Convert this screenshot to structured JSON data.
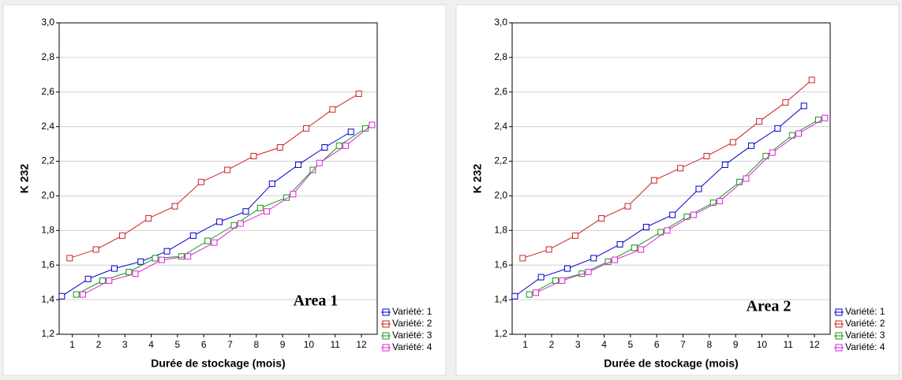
{
  "chart_data": [
    {
      "type": "line",
      "ylabel": "K 232",
      "xlabel": "Durée de stockage (mois)",
      "annotation": "Area 1",
      "xlim": [
        0.5,
        12.6
      ],
      "xticks": [
        1,
        2,
        3,
        4,
        5,
        6,
        7,
        8,
        9,
        10,
        11,
        12
      ],
      "ylim": [
        1.2,
        3.0
      ],
      "yticks": [
        {
          "value": 1.2,
          "label": "1,2"
        },
        {
          "value": 1.4,
          "label": "1,4"
        },
        {
          "value": 1.6,
          "label": "1,6"
        },
        {
          "value": 1.8,
          "label": "1,8"
        },
        {
          "value": 2.0,
          "label": "2,0"
        },
        {
          "value": 2.2,
          "label": "2,2"
        },
        {
          "value": 2.4,
          "label": "2,4"
        },
        {
          "value": 2.6,
          "label": "2,6"
        },
        {
          "value": 2.8,
          "label": "2,8"
        },
        {
          "value": 3.0,
          "label": "3,0"
        }
      ],
      "grid": true,
      "legend": "lower right",
      "series": [
        {
          "name": "Variété: 1",
          "color": "#0000cc",
          "x": [
            0.6,
            1.6,
            2.6,
            3.6,
            4.6,
            5.6,
            6.6,
            7.6,
            8.6,
            9.6,
            10.6,
            11.6
          ],
          "values": [
            1.42,
            1.52,
            1.58,
            1.62,
            1.68,
            1.77,
            1.85,
            1.91,
            2.07,
            2.18,
            2.28,
            2.37
          ]
        },
        {
          "name": "Variété: 2",
          "color": "#cc2222",
          "x": [
            0.9,
            1.9,
            2.9,
            3.9,
            4.9,
            5.9,
            6.9,
            7.9,
            8.9,
            9.9,
            10.9,
            11.9
          ],
          "values": [
            1.64,
            1.69,
            1.77,
            1.87,
            1.94,
            2.08,
            2.15,
            2.23,
            2.28,
            2.39,
            2.5,
            2.59
          ]
        },
        {
          "name": "Variété: 3",
          "color": "#119911",
          "x": [
            1.15,
            2.15,
            3.15,
            4.15,
            5.15,
            6.15,
            7.15,
            8.15,
            9.15,
            10.15,
            11.15,
            12.15
          ],
          "values": [
            1.43,
            1.51,
            1.56,
            1.64,
            1.65,
            1.74,
            1.83,
            1.93,
            1.99,
            2.15,
            2.29,
            2.39
          ]
        },
        {
          "name": "Variété: 4",
          "color": "#dd22dd",
          "x": [
            1.4,
            2.4,
            3.4,
            4.4,
            5.4,
            6.4,
            7.4,
            8.4,
            9.4,
            10.4,
            11.4,
            12.4
          ],
          "values": [
            1.43,
            1.51,
            1.55,
            1.63,
            1.65,
            1.73,
            1.84,
            1.91,
            2.01,
            2.19,
            2.29,
            2.41
          ]
        }
      ]
    },
    {
      "type": "line",
      "ylabel": "K 232",
      "xlabel": "Durée de stockage (mois)",
      "annotation": "Area 2",
      "xlim": [
        0.5,
        12.6
      ],
      "xticks": [
        1,
        2,
        3,
        4,
        5,
        6,
        7,
        8,
        9,
        10,
        11,
        12
      ],
      "ylim": [
        1.2,
        3.0
      ],
      "yticks": [
        {
          "value": 1.2,
          "label": "1,2"
        },
        {
          "value": 1.4,
          "label": "1,4"
        },
        {
          "value": 1.6,
          "label": "1,6"
        },
        {
          "value": 1.8,
          "label": "1,8"
        },
        {
          "value": 2.0,
          "label": "2,0"
        },
        {
          "value": 2.2,
          "label": "2,2"
        },
        {
          "value": 2.4,
          "label": "2,4"
        },
        {
          "value": 2.6,
          "label": "2,6"
        },
        {
          "value": 2.8,
          "label": "2,8"
        },
        {
          "value": 3.0,
          "label": "3,0"
        }
      ],
      "grid": true,
      "legend": "lower right",
      "series": [
        {
          "name": "Variété: 1",
          "color": "#0000cc",
          "x": [
            0.6,
            1.6,
            2.6,
            3.6,
            4.6,
            5.6,
            6.6,
            7.6,
            8.6,
            9.6,
            10.6,
            11.6
          ],
          "values": [
            1.42,
            1.53,
            1.58,
            1.64,
            1.72,
            1.82,
            1.89,
            2.04,
            2.18,
            2.29,
            2.39,
            2.52
          ]
        },
        {
          "name": "Variété: 2",
          "color": "#cc2222",
          "x": [
            0.9,
            1.9,
            2.9,
            3.9,
            4.9,
            5.9,
            6.9,
            7.9,
            8.9,
            9.9,
            10.9,
            11.9
          ],
          "values": [
            1.64,
            1.69,
            1.77,
            1.87,
            1.94,
            2.09,
            2.16,
            2.23,
            2.31,
            2.43,
            2.54,
            2.67
          ]
        },
        {
          "name": "Variété: 3",
          "color": "#119911",
          "x": [
            1.15,
            2.15,
            3.15,
            4.15,
            5.15,
            6.15,
            7.15,
            8.15,
            9.15,
            10.15,
            11.15,
            12.15
          ],
          "values": [
            1.43,
            1.51,
            1.55,
            1.62,
            1.7,
            1.79,
            1.88,
            1.96,
            2.08,
            2.23,
            2.35,
            2.44
          ]
        },
        {
          "name": "Variété: 4",
          "color": "#dd22dd",
          "x": [
            1.4,
            2.4,
            3.4,
            4.4,
            5.4,
            6.4,
            7.4,
            8.4,
            9.4,
            10.4,
            11.4,
            12.4
          ],
          "values": [
            1.44,
            1.51,
            1.56,
            1.63,
            1.69,
            1.8,
            1.89,
            1.97,
            2.1,
            2.25,
            2.36,
            2.45
          ]
        }
      ]
    }
  ]
}
